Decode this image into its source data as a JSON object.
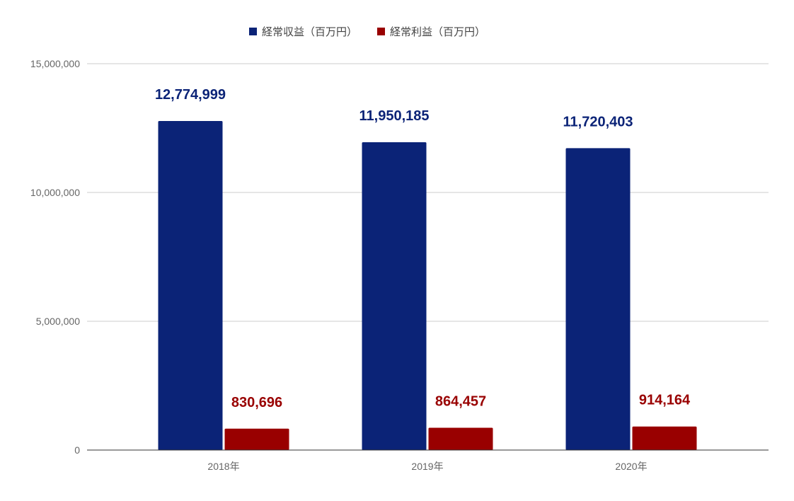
{
  "chart_data": {
    "type": "bar",
    "title": "",
    "xlabel": "",
    "ylabel": "",
    "categories": [
      "2018年",
      "2019年",
      "2020年"
    ],
    "series": [
      {
        "name": "経常収益（百万円）",
        "color": "#0b2377",
        "values": [
          12774999,
          11950185,
          11720403
        ],
        "value_labels": [
          "12,774,999",
          "11,950,185",
          "11,720,403"
        ]
      },
      {
        "name": "経常利益（百万円）",
        "color": "#990000",
        "values": [
          830696,
          864457,
          914164
        ],
        "value_labels": [
          "830,696",
          "864,457",
          "914,164"
        ]
      }
    ],
    "ylim": [
      0,
      15000000
    ],
    "yticks": [
      0,
      5000000,
      10000000,
      15000000
    ],
    "ytick_labels": [
      "0",
      "5,000,000",
      "10,000,000",
      "15,000,000"
    ],
    "grid": true,
    "legend_position": "top-center"
  }
}
